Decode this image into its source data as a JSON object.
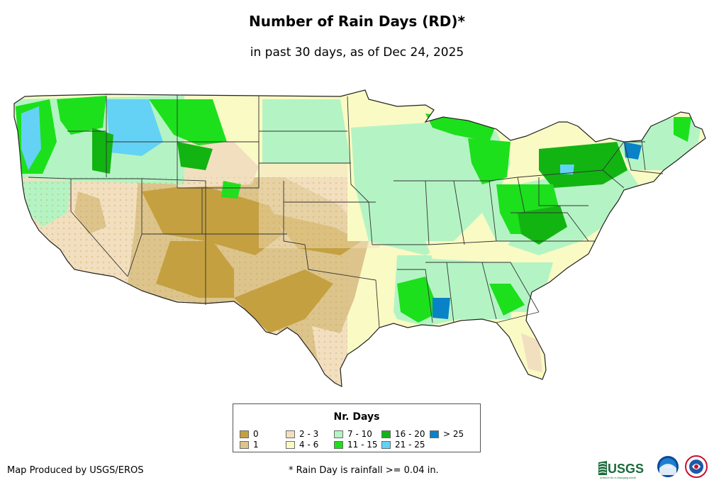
{
  "title": "Number of Rain Days (RD)*",
  "subtitle": "in past 30 days, as of Dec 24, 2025",
  "legend": {
    "title": "Nr. Days",
    "items": [
      {
        "label": "0",
        "color": "#c4a040"
      },
      {
        "label": "1",
        "color": "#dcc48c"
      },
      {
        "label": "2 - 3",
        "color": "#f2dfc0"
      },
      {
        "label": "4 - 6",
        "color": "#fafac4"
      },
      {
        "label": "7 - 10",
        "color": "#b4f4c4"
      },
      {
        "label": "11 - 15",
        "color": "#1ce01c"
      },
      {
        "label": "16 - 20",
        "color": "#12b412"
      },
      {
        "label": "21 - 25",
        "color": "#64d2f4"
      },
      {
        "label": "> 25",
        "color": "#0a82c8"
      }
    ]
  },
  "footer": {
    "producer": "Map Produced by USGS/EROS",
    "note": "* Rain Day is rainfall >= 0.04 in."
  },
  "logos": {
    "usgs": "USGS",
    "usgs_tagline": "science for a changing world",
    "noaa": "noaa"
  }
}
